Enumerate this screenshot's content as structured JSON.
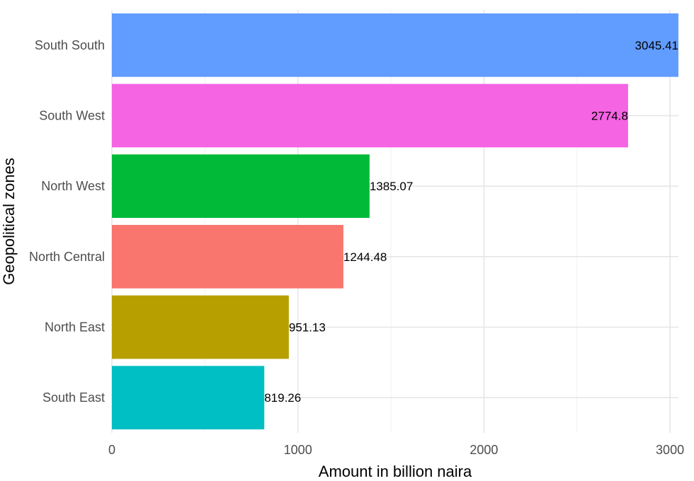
{
  "chart_data": {
    "type": "bar",
    "orientation": "horizontal",
    "categories": [
      "South East",
      "North East",
      "North Central",
      "North West",
      "South West",
      "South South"
    ],
    "values": [
      819.26,
      951.13,
      1244.48,
      1385.07,
      2774.8,
      3045.41
    ],
    "value_labels": [
      "819.26",
      "951.13",
      "1244.48",
      "1385.07",
      "2774.8",
      "3045.41"
    ],
    "colors": [
      "#00BFC4",
      "#B79F00",
      "#F8766D",
      "#00BA38",
      "#F564E3",
      "#619CFF"
    ],
    "xlabel": "Amount in billion naira",
    "ylabel": "Geopolitical zones",
    "xlim": [
      0,
      3045.41
    ],
    "x_ticks": [
      0,
      1000,
      2000,
      3000
    ],
    "x_tick_labels": [
      "0",
      "1000",
      "2000",
      "3000"
    ],
    "grid": true,
    "legend": "none"
  }
}
